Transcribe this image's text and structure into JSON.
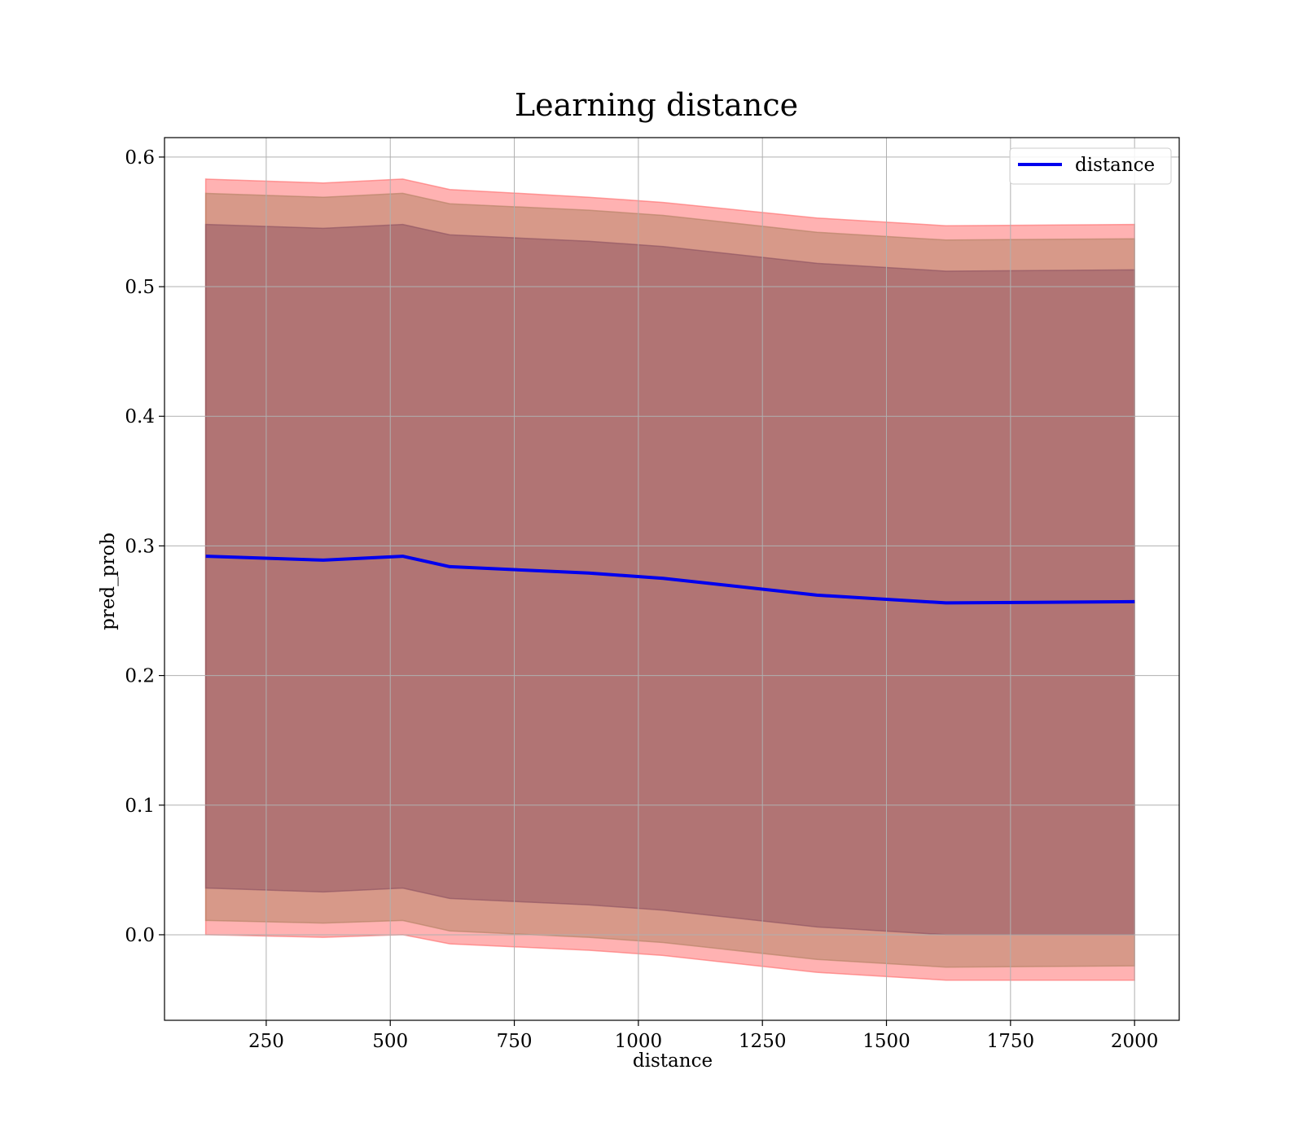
{
  "chart_data": {
    "type": "line",
    "title": "Learning distance",
    "xlabel": "distance",
    "ylabel": "pred_prob",
    "xlim": [
      45,
      2090
    ],
    "ylim": [
      -0.066,
      0.615
    ],
    "xticks": [
      250,
      500,
      750,
      1000,
      1250,
      1500,
      1750,
      2000
    ],
    "xtick_labels": [
      "250",
      "500",
      "750",
      "1000",
      "1250",
      "1500",
      "1750",
      "2000"
    ],
    "yticks": [
      0.0,
      0.1,
      0.2,
      0.3,
      0.4,
      0.5,
      0.6
    ],
    "ytick_labels": [
      "0.0",
      "0.1",
      "0.2",
      "0.3",
      "0.4",
      "0.5",
      "0.6"
    ],
    "grid": true,
    "legend_position": "top-right",
    "x": [
      128,
      365,
      525,
      620,
      900,
      1050,
      1360,
      1620,
      2000
    ],
    "series": [
      {
        "name": "distance",
        "color": "#0000ee",
        "values": [
          0.292,
          0.289,
          0.292,
          0.284,
          0.279,
          0.275,
          0.262,
          0.256,
          0.257
        ]
      }
    ],
    "bands": [
      {
        "level": "outer",
        "color": "#ff6666",
        "upper": [
          0.583,
          0.58,
          0.583,
          0.575,
          0.569,
          0.565,
          0.553,
          0.547,
          0.548
        ],
        "lower": [
          0.0,
          -0.002,
          0.0,
          -0.007,
          -0.012,
          -0.016,
          -0.029,
          -0.035,
          -0.035
        ]
      },
      {
        "level": "middle",
        "color": "#b08060",
        "upper": [
          0.572,
          0.569,
          0.572,
          0.564,
          0.559,
          0.555,
          0.542,
          0.536,
          0.537
        ],
        "lower": [
          0.011,
          0.009,
          0.011,
          0.003,
          -0.002,
          -0.006,
          -0.019,
          -0.025,
          -0.024
        ]
      },
      {
        "level": "inner",
        "color": "#8b5060",
        "upper": [
          0.548,
          0.545,
          0.548,
          0.54,
          0.535,
          0.531,
          0.518,
          0.512,
          0.513
        ],
        "lower": [
          0.036,
          0.033,
          0.036,
          0.028,
          0.023,
          0.019,
          0.006,
          0.0,
          0.0
        ]
      }
    ]
  }
}
